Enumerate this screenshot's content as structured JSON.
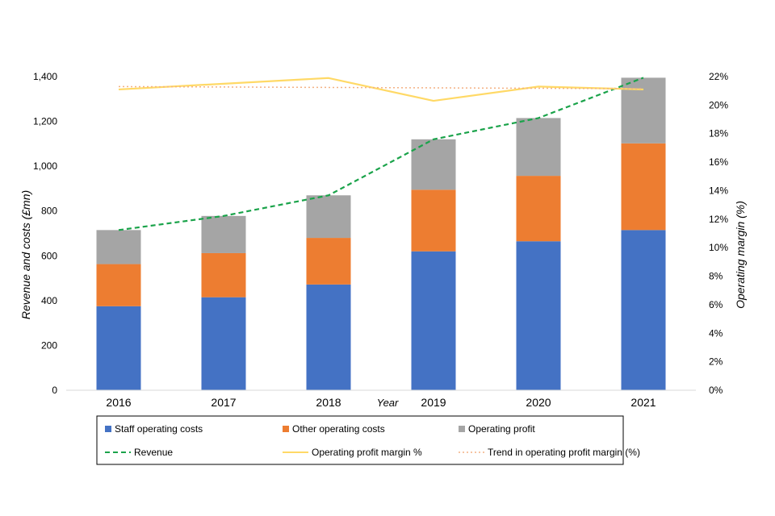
{
  "chart_data": {
    "type": "bar",
    "stacked": true,
    "categories": [
      "2016",
      "2017",
      "2018",
      "2019",
      "2020",
      "2021"
    ],
    "xlabel": "Year",
    "ylabel": "Revenue and costs (£mn)",
    "y2label": "Operating margin (%)",
    "ylim": [
      0,
      1400
    ],
    "yticks": [
      0,
      200,
      400,
      600,
      800,
      1000,
      1200,
      1400
    ],
    "y2lim": [
      0,
      22
    ],
    "y2ticks": [
      0,
      2,
      4,
      6,
      8,
      10,
      12,
      14,
      16,
      18,
      20,
      22
    ],
    "grid": false,
    "legend_position": "bottom",
    "series": [
      {
        "name": "Staff operating costs",
        "kind": "bar",
        "axis": "left",
        "color": "#4472C4",
        "values": [
          375,
          415,
          472,
          620,
          665,
          715
        ]
      },
      {
        "name": "Other operating costs",
        "kind": "bar",
        "axis": "left",
        "color": "#ED7D31",
        "values": [
          188,
          197,
          208,
          275,
          292,
          387
        ]
      },
      {
        "name": "Operating profit",
        "kind": "bar",
        "axis": "left",
        "color": "#A5A5A5",
        "values": [
          152,
          166,
          190,
          225,
          258,
          293
        ]
      },
      {
        "name": "Revenue",
        "kind": "line",
        "style": "dashed",
        "axis": "left",
        "color": "#1AA34A",
        "values": [
          715,
          778,
          870,
          1120,
          1215,
          1395
        ]
      },
      {
        "name": "Operating profit margin %",
        "kind": "line",
        "style": "solid",
        "axis": "right",
        "color": "#FFD966",
        "values": [
          21.1,
          21.5,
          21.9,
          20.3,
          21.3,
          21.1
        ]
      },
      {
        "name": "Trend in operating profit margin (%)",
        "kind": "line",
        "style": "dotted",
        "axis": "right",
        "color": "#F4B183",
        "values": [
          21.3,
          21.27,
          21.24,
          21.21,
          21.18,
          21.15
        ]
      }
    ]
  }
}
